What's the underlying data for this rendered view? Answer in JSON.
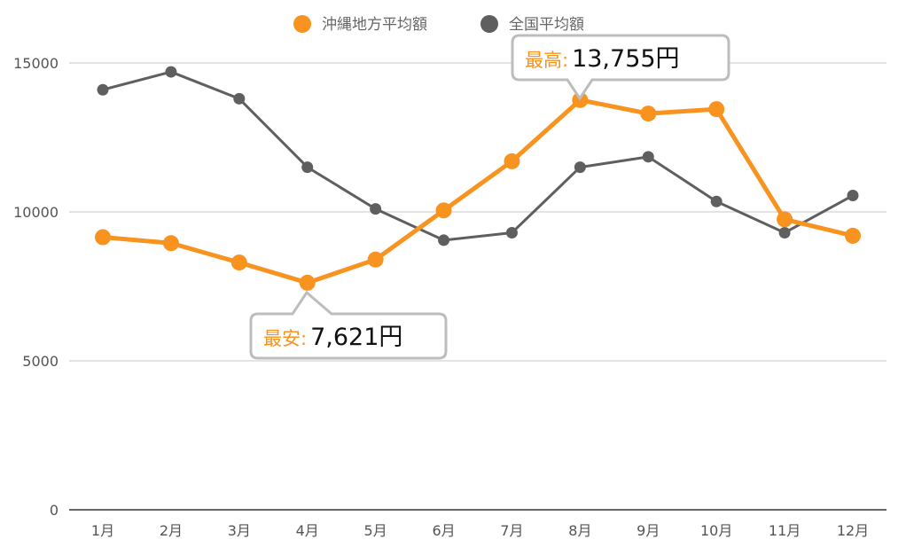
{
  "chart_data": {
    "type": "line",
    "categories": [
      "1月",
      "2月",
      "3月",
      "4月",
      "5月",
      "6月",
      "7月",
      "8月",
      "9月",
      "10月",
      "11月",
      "12月"
    ],
    "series": [
      {
        "name": "沖縄地方平均額",
        "color": "#f7931e",
        "values": [
          9150,
          8950,
          8300,
          7621,
          8400,
          10050,
          11700,
          13755,
          13300,
          13450,
          9750,
          9200
        ]
      },
      {
        "name": "全国平均額",
        "color": "#5f5f5f",
        "values": [
          14100,
          14700,
          13800,
          11500,
          10100,
          9050,
          9300,
          11500,
          11850,
          10350,
          9300,
          10550
        ]
      }
    ],
    "ylim": [
      0,
      16000
    ],
    "yticks": [
      0,
      5000,
      10000,
      15000
    ],
    "grid": true,
    "legend": "top-center",
    "annotations": [
      {
        "series": 0,
        "index": 7,
        "label": "最高:",
        "value": "13,755円",
        "position": "above"
      },
      {
        "series": 0,
        "index": 3,
        "label": "最安:",
        "value": "7,621円",
        "position": "below"
      }
    ]
  }
}
